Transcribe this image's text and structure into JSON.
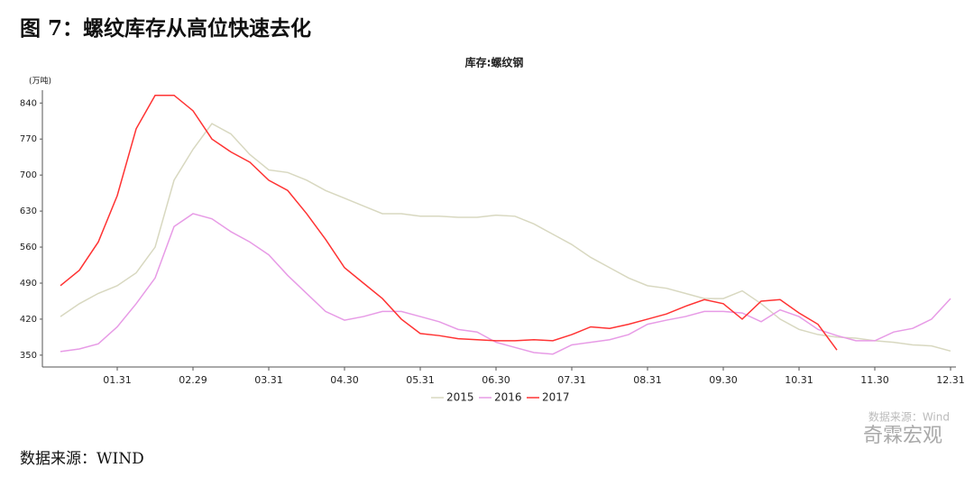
{
  "heading": "图 7：螺纹库存从高位快速去化",
  "source": "数据来源：WIND",
  "watermark": {
    "source": "数据来源：Wind",
    "brand": "奇霖宏观"
  },
  "chart_data": {
    "type": "line",
    "title": "库存:螺纹钢",
    "y_label": "(万吨)",
    "categories": [
      null,
      null,
      null,
      "01.31",
      null,
      null,
      null,
      "02.29",
      null,
      null,
      null,
      "03.31",
      null,
      null,
      null,
      "04.30",
      null,
      null,
      null,
      "05.31",
      null,
      null,
      null,
      "06.30",
      null,
      null,
      null,
      "07.31",
      null,
      null,
      null,
      "08.31",
      null,
      null,
      null,
      "09.30",
      null,
      null,
      null,
      "10.31",
      null,
      null,
      null,
      "11.30",
      null,
      null,
      null,
      "12.31"
    ],
    "series": [
      {
        "name": "2015",
        "color": "#d8d8c0",
        "values": [
          425,
          450,
          470,
          485,
          510,
          560,
          690,
          750,
          800,
          780,
          740,
          710,
          705,
          690,
          670,
          655,
          640,
          625,
          625,
          620,
          620,
          618,
          618,
          622,
          620,
          605,
          585,
          565,
          540,
          520,
          500,
          485,
          480,
          470,
          460,
          460,
          475,
          450,
          420,
          400,
          390,
          385,
          383,
          378,
          375,
          370,
          368,
          358
        ]
      },
      {
        "name": "2016",
        "color": "#e79be6",
        "values": [
          357,
          362,
          372,
          405,
          450,
          500,
          600,
          625,
          615,
          590,
          570,
          545,
          505,
          470,
          435,
          418,
          425,
          435,
          435,
          425,
          415,
          400,
          395,
          375,
          365,
          355,
          352,
          370,
          375,
          380,
          390,
          410,
          418,
          425,
          435,
          435,
          432,
          415,
          438,
          425,
          400,
          388,
          378,
          378,
          395,
          402,
          420,
          460
        ]
      },
      {
        "name": "2017",
        "color": "#ff3333",
        "values": [
          485,
          515,
          570,
          660,
          790,
          855,
          855,
          825,
          770,
          745,
          725,
          690,
          670,
          625,
          575,
          520,
          490,
          460,
          420,
          392,
          388,
          382,
          380,
          378,
          378,
          380,
          378,
          390,
          405,
          402,
          410,
          420,
          430,
          445,
          458,
          450,
          420,
          455,
          458,
          432,
          410,
          360,
          null,
          null,
          null,
          null,
          null,
          null
        ]
      }
    ],
    "ylim": [
      327,
      865
    ],
    "yticks": [
      350,
      420,
      490,
      560,
      630,
      700,
      770,
      840
    ],
    "legend": "bottom"
  }
}
